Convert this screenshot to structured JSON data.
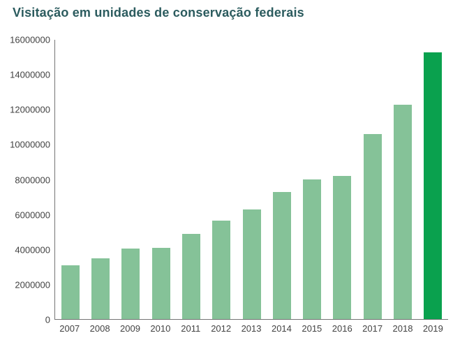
{
  "chart_data": {
    "type": "bar",
    "title": "Visitação em unidades de conservação federais",
    "categories": [
      "2007",
      "2008",
      "2009",
      "2010",
      "2011",
      "2012",
      "2013",
      "2014",
      "2015",
      "2016",
      "2017",
      "2018",
      "2019"
    ],
    "values": [
      3100000,
      3500000,
      4050000,
      4100000,
      4900000,
      5650000,
      6300000,
      7300000,
      8000000,
      8200000,
      10600000,
      12300000,
      15300000
    ],
    "xlabel": "",
    "ylabel": "",
    "ylim": [
      0,
      16000000
    ],
    "ytick_step": 2000000,
    "ytick_labels": [
      "0",
      "2000000",
      "4000000",
      "6000000",
      "8000000",
      "10000000",
      "12000000",
      "14000000",
      "16000000"
    ],
    "highlight_category": "2019",
    "colors": {
      "bar": "#85c298",
      "highlight": "#0aa14e",
      "title": "#2b5b5e",
      "axis": "#757575",
      "tick_text": "#424242"
    },
    "grid": "off",
    "legend_position": "none"
  }
}
